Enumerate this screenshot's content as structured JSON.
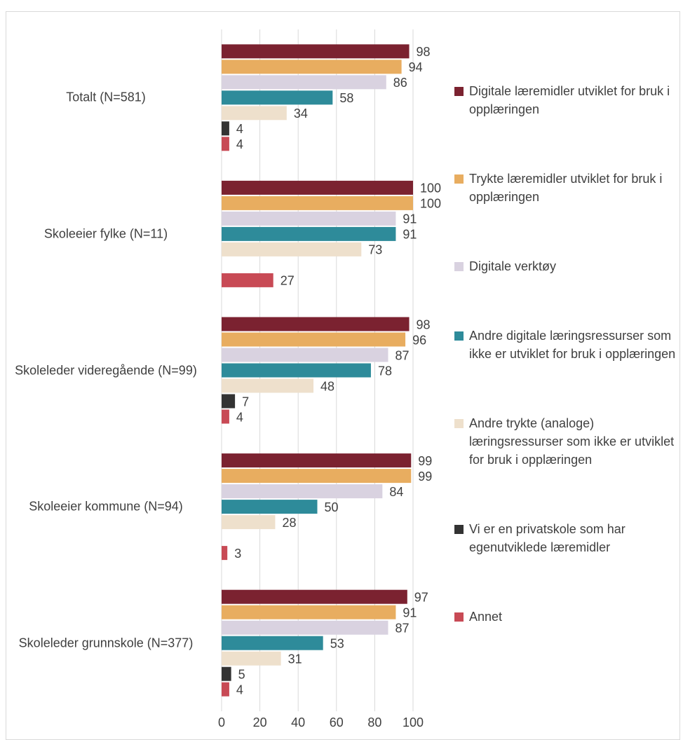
{
  "chart_data": {
    "type": "hbar",
    "categories": [
      "Totalt (N=581)",
      "Skoleeier fylke (N=11)",
      "Skoleleder videregående (N=99)",
      "Skoleeier kommune (N=94)",
      "Skoleleder grunnskole (N=377)"
    ],
    "series": [
      {
        "name": "Digitale læremidler utviklet for bruk i opplæringen",
        "color": "#7b2230",
        "values": [
          98,
          100,
          98,
          99,
          97
        ]
      },
      {
        "name": "Trykte læremidler utviklet for bruk i opplæringen",
        "color": "#e8ad60",
        "values": [
          94,
          100,
          96,
          99,
          91
        ]
      },
      {
        "name": "Digitale verktøy",
        "color": "#d9d2e0",
        "values": [
          86,
          91,
          87,
          84,
          87
        ]
      },
      {
        "name": "Andre digitale læringsressurser som ikke er utviklet for bruk i opplæringen",
        "color": "#2e8b9a",
        "values": [
          58,
          91,
          78,
          50,
          53
        ]
      },
      {
        "name": "Andre trykte (analoge) læringsressurser som ikke er utviklet for bruk i opplæringen",
        "color": "#eee0cc",
        "values": [
          34,
          73,
          48,
          28,
          31
        ]
      },
      {
        "name": "Vi er en privatskole som har egenutviklede læremidler",
        "color": "#333333",
        "values": [
          4,
          null,
          7,
          null,
          5
        ]
      },
      {
        "name": "Annet",
        "color": "#c84a55",
        "values": [
          4,
          27,
          4,
          3,
          4
        ]
      }
    ],
    "xlim": [
      0,
      100
    ],
    "xticks": [
      0,
      20,
      40,
      60,
      80,
      100
    ],
    "grid": true,
    "legend": "right"
  }
}
